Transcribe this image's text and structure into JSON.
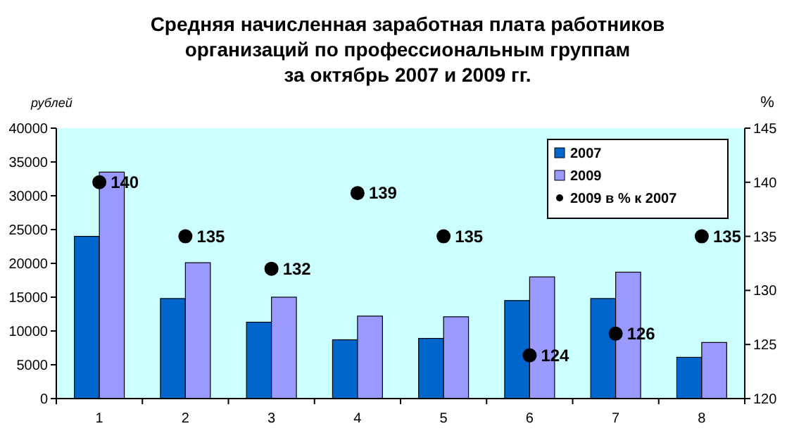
{
  "chart_data": {
    "type": "bar",
    "title": "Средняя начисленная заработная плата работников\nорганизаций по профессиональным группам\nза октябрь 2007 и 2009 гг.",
    "ylabel": "рублей",
    "y2label": "%",
    "categories": [
      "1",
      "2",
      "3",
      "4",
      "5",
      "6",
      "7",
      "8"
    ],
    "series": [
      {
        "name": "2007",
        "color": "#0066cc",
        "values": [
          24000,
          14800,
          11300,
          8700,
          8900,
          14500,
          14800,
          6100
        ]
      },
      {
        "name": "2009",
        "color": "#9999ff",
        "values": [
          33500,
          20100,
          15000,
          12200,
          12100,
          18000,
          18700,
          8300
        ]
      },
      {
        "name": "2009 в % к 2007",
        "type": "scatter",
        "axis": "y2",
        "color": "#000000",
        "marker": "circle",
        "data_labels": true,
        "values": [
          140,
          135,
          132,
          139,
          135,
          124,
          126,
          135
        ]
      }
    ],
    "ylim": [
      0,
      40000
    ],
    "yticks": [
      0,
      5000,
      10000,
      15000,
      20000,
      25000,
      30000,
      35000,
      40000
    ],
    "y2lim": [
      120,
      145
    ],
    "y2ticks": [
      120,
      125,
      130,
      135,
      140,
      145
    ],
    "grid": false,
    "legend": "top right"
  }
}
